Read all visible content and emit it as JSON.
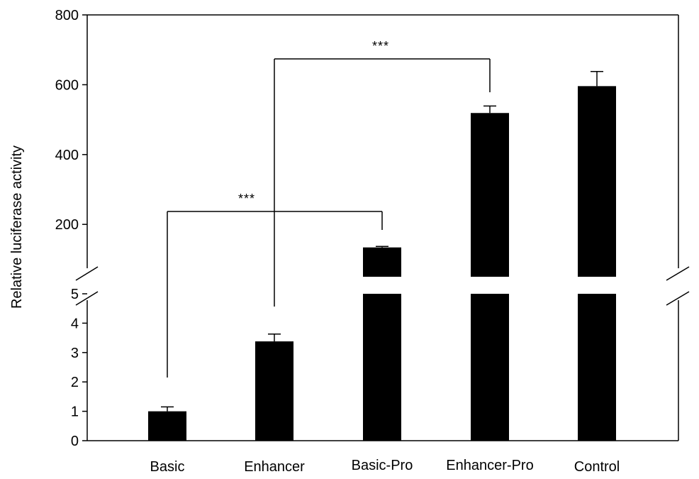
{
  "chart_data": {
    "type": "bar",
    "categories": [
      "Basic",
      "Enhancer",
      "Basic-Pro",
      "Enhancer-Pro",
      "Control"
    ],
    "values": [
      1.0,
      3.38,
      134,
      519,
      596
    ],
    "errors": [
      0.15,
      0.25,
      3,
      20,
      42
    ],
    "ylabel": "Relative luciferase activity",
    "xlabel": "",
    "title": "",
    "y_axis_break": true,
    "lower_segment": {
      "ylim": [
        0,
        5
      ],
      "ticks": [
        "0",
        "1",
        "2",
        "3",
        "4",
        "5"
      ]
    },
    "upper_segment": {
      "ylim": [
        50,
        800
      ],
      "ticks": [
        "200",
        "400",
        "600",
        "800"
      ]
    },
    "bar_color": "#000000",
    "grid": false,
    "significance": [
      {
        "from": "Basic",
        "to": "Basic-Pro",
        "label": "***"
      },
      {
        "from": "Enhancer",
        "to": "Enhancer-Pro",
        "label": "***"
      }
    ]
  }
}
